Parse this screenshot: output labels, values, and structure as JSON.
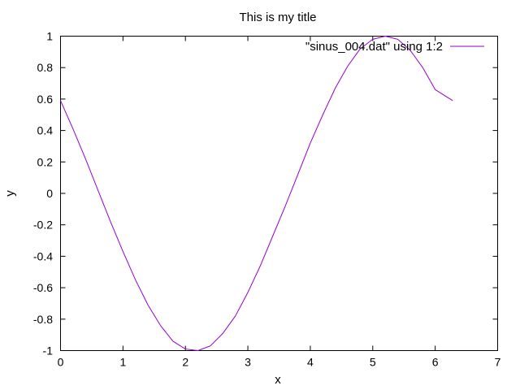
{
  "chart_data": {
    "type": "line",
    "title": "This is my title",
    "xlabel": "x",
    "ylabel": "y",
    "xlim": [
      0,
      7
    ],
    "ylim": [
      -1,
      1
    ],
    "xticks": [
      "0",
      "1",
      "2",
      "3",
      "4",
      "5",
      "6",
      "7"
    ],
    "yticks": [
      "1",
      "0.8",
      "0.6",
      "0.4",
      "0.2",
      "0",
      "-0.2",
      "-0.4",
      "-0.6",
      "-0.8",
      "-1"
    ],
    "grid": false,
    "legend_position": "top-right",
    "series": [
      {
        "name": "\"sinus_004.dat\" using 1:2",
        "color": "#9400d3",
        "x": [
          0.0,
          0.2,
          0.4,
          0.6,
          0.8,
          1.0,
          1.2,
          1.4,
          1.6,
          1.8,
          2.0,
          2.2,
          2.4,
          2.6,
          2.8,
          3.0,
          3.2,
          3.4,
          3.6,
          3.8,
          4.0,
          4.2,
          4.4,
          4.6,
          4.8,
          5.0,
          5.2,
          5.4,
          5.6,
          5.8,
          6.0,
          6.28
        ],
        "y": [
          0.59,
          0.41,
          0.22,
          0.02,
          -0.18,
          -0.37,
          -0.55,
          -0.71,
          -0.84,
          -0.94,
          -0.99,
          -1.0,
          -0.97,
          -0.89,
          -0.78,
          -0.63,
          -0.46,
          -0.27,
          -0.08,
          0.12,
          0.32,
          0.5,
          0.67,
          0.81,
          0.92,
          0.98,
          1.0,
          0.98,
          0.91,
          0.8,
          0.66,
          0.59
        ]
      }
    ]
  }
}
